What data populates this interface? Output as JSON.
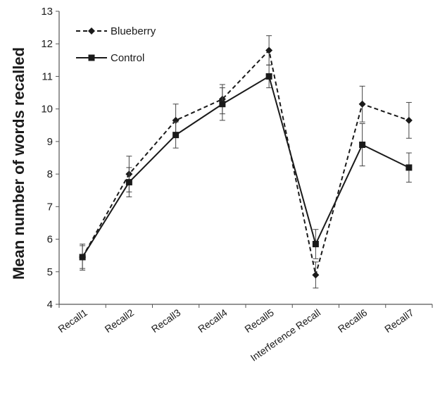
{
  "chart_data": {
    "type": "line",
    "title": "",
    "xlabel": "",
    "ylabel": "Mean number of words recalled",
    "categories": [
      "Recall1",
      "Recall2",
      "Recall3",
      "Recall4",
      "Recall5",
      "Interference Recall",
      "Recall6",
      "Recall7"
    ],
    "ylim": [
      4,
      13
    ],
    "yticks": [
      "4",
      "5",
      "6",
      "7",
      "8",
      "9",
      "10",
      "11",
      "12",
      "13"
    ],
    "grid": false,
    "legend_position": "top-left",
    "series": [
      {
        "name": "Blueberry",
        "line_style": "dashed",
        "marker": "diamond",
        "color": "#1a1a1a",
        "values": [
          5.45,
          8.0,
          9.65,
          10.3,
          11.8,
          4.9,
          10.15,
          9.65
        ],
        "error": [
          0.35,
          0.55,
          0.5,
          0.45,
          0.45,
          0.4,
          0.55,
          0.55
        ]
      },
      {
        "name": "Control",
        "line_style": "solid",
        "marker": "square",
        "color": "#1a1a1a",
        "values": [
          5.45,
          7.75,
          9.2,
          10.15,
          11.0,
          5.85,
          8.9,
          8.2
        ],
        "error": [
          0.4,
          0.45,
          0.4,
          0.5,
          0.35,
          0.45,
          0.65,
          0.45
        ]
      }
    ]
  }
}
